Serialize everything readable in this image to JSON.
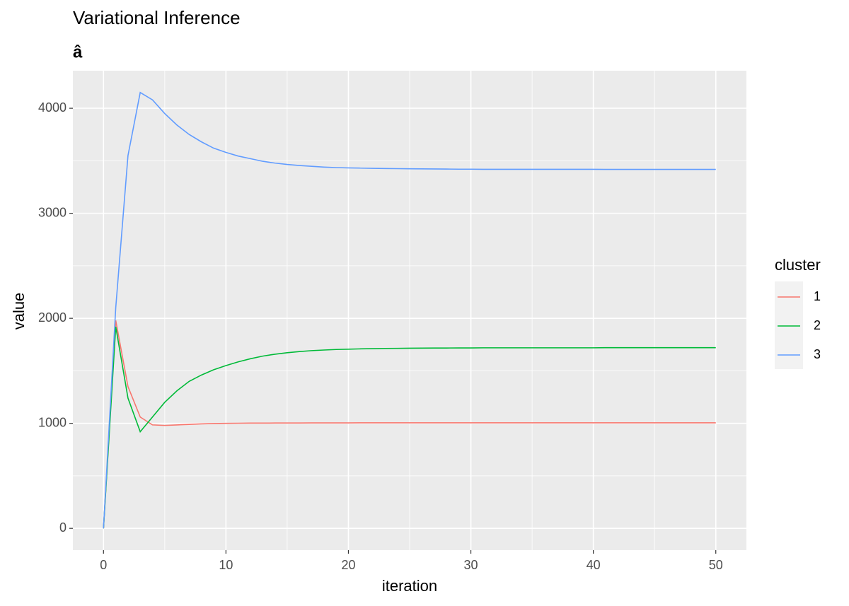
{
  "chart_data": {
    "type": "line",
    "title": "Variational Inference",
    "subtitle": "â",
    "x_label": "iteration",
    "y_label": "value",
    "legend_title": "cluster",
    "x": [
      0,
      1,
      2,
      3,
      4,
      5,
      6,
      7,
      8,
      9,
      10,
      11,
      12,
      13,
      14,
      15,
      16,
      17,
      18,
      19,
      20,
      21,
      22,
      23,
      24,
      25,
      26,
      27,
      28,
      29,
      30,
      31,
      32,
      33,
      34,
      35,
      36,
      37,
      38,
      39,
      40,
      41,
      42,
      43,
      44,
      45,
      46,
      47,
      48,
      49,
      50
    ],
    "series": [
      {
        "name": "1",
        "color": "#F8766D",
        "values": [
          0,
          1980,
          1350,
          1060,
          985,
          980,
          985,
          990,
          995,
          998,
          1000,
          1001,
          1002,
          1002,
          1003,
          1003,
          1003,
          1004,
          1004,
          1004,
          1004,
          1005,
          1005,
          1005,
          1005,
          1005,
          1005,
          1005,
          1005,
          1005,
          1005,
          1005,
          1005,
          1005,
          1005,
          1005,
          1005,
          1005,
          1005,
          1005,
          1005,
          1005,
          1005,
          1005,
          1005,
          1005,
          1005,
          1005,
          1005,
          1005,
          1005
        ]
      },
      {
        "name": "2",
        "color": "#00BA38",
        "values": [
          0,
          1920,
          1240,
          920,
          1060,
          1200,
          1310,
          1400,
          1460,
          1510,
          1550,
          1585,
          1615,
          1640,
          1658,
          1672,
          1683,
          1692,
          1698,
          1703,
          1706,
          1709,
          1711,
          1713,
          1714,
          1715,
          1716,
          1717,
          1717,
          1718,
          1718,
          1719,
          1719,
          1719,
          1719,
          1719,
          1719,
          1719,
          1719,
          1719,
          1719,
          1720,
          1720,
          1720,
          1720,
          1720,
          1720,
          1720,
          1720,
          1720,
          1720
        ]
      },
      {
        "name": "3",
        "color": "#619CFF",
        "values": [
          0,
          2100,
          3550,
          4150,
          4080,
          3950,
          3840,
          3750,
          3680,
          3620,
          3580,
          3545,
          3520,
          3495,
          3478,
          3465,
          3455,
          3447,
          3440,
          3435,
          3432,
          3430,
          3428,
          3426,
          3425,
          3424,
          3423,
          3422,
          3421,
          3420,
          3420,
          3419,
          3419,
          3419,
          3419,
          3419,
          3419,
          3419,
          3419,
          3419,
          3419,
          3418,
          3418,
          3418,
          3418,
          3418,
          3418,
          3418,
          3418,
          3418,
          3418
        ]
      }
    ],
    "xlim": [
      -2.5,
      52.5
    ],
    "xticks": [
      0,
      10,
      20,
      30,
      40,
      50
    ],
    "ylim": [
      -207.5,
      4357.5
    ],
    "yticks": [
      0,
      1000,
      2000,
      3000,
      4000
    ],
    "grid": true,
    "legend": "right"
  }
}
